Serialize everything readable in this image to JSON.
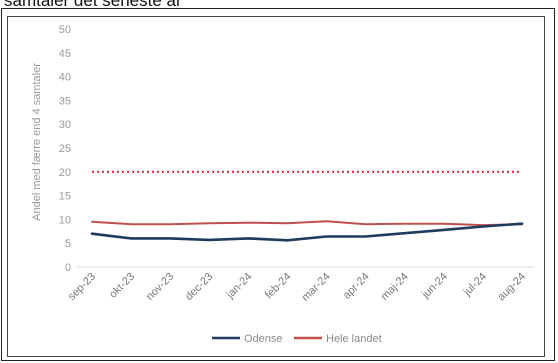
{
  "header": {
    "cut_text": "samtaler det seneste år"
  },
  "chart_data": {
    "type": "line",
    "title": "",
    "xlabel": "",
    "ylabel": "Andel med færre end 4 samtaler",
    "ylim": [
      0,
      50
    ],
    "yticks": [
      0,
      5,
      10,
      15,
      20,
      25,
      30,
      35,
      40,
      45,
      50
    ],
    "grid": false,
    "legend_position": "bottom",
    "categories": [
      "sep-23",
      "okt-23",
      "nov-23",
      "dec-23",
      "jan-24",
      "feb-24",
      "mar-24",
      "apr-24",
      "maj-24",
      "jun-24",
      "jul-24",
      "aug-24"
    ],
    "series": [
      {
        "name": "Odense",
        "color": "#1f3a5f",
        "values": [
          7.0,
          6.0,
          6.0,
          5.7,
          6.0,
          5.6,
          6.4,
          6.4,
          7.1,
          7.8,
          8.5,
          9.1
        ]
      },
      {
        "name": "Hele landet",
        "color": "#c0504d",
        "values": [
          9.5,
          9.0,
          9.0,
          9.2,
          9.3,
          9.2,
          9.6,
          9.0,
          9.1,
          9.1,
          8.8,
          9.0
        ]
      }
    ],
    "reference_line": {
      "value": 20,
      "color": "#e0343a",
      "style": "dotted"
    }
  }
}
